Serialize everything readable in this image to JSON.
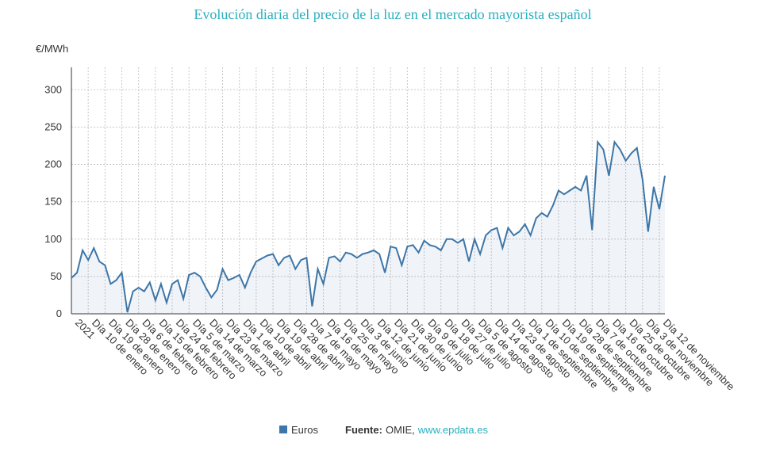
{
  "chart_data": {
    "type": "line",
    "title": "Evolución diaria del precio de la luz en el mercado mayorista español",
    "y_label": "€/MWh",
    "source_label": "Fuente:",
    "source": "OMIE,",
    "source_url": "www.epdata.es",
    "categories": [
      "2021",
      null,
      null,
      "Día 10 de enero",
      null,
      null,
      "Día 19 de enero",
      null,
      null,
      "Día 28 de enero",
      null,
      null,
      "Día 6 de febrero",
      null,
      null,
      "Día 15 de febrero",
      null,
      null,
      "Día 24 de febrero",
      null,
      null,
      "Día 5 de marzo",
      null,
      null,
      "Día 14 de marzo",
      null,
      null,
      "Día 23 de marzo",
      null,
      null,
      "Día 1 de abril",
      null,
      null,
      "Día 10 de abril",
      null,
      null,
      "Día 19 de abril",
      null,
      null,
      "Día 28 de abril",
      null,
      null,
      "Día 7 de mayo",
      null,
      null,
      "Día 16 de mayo",
      null,
      null,
      "Día 25 de mayo",
      null,
      null,
      "Día 3 de junio",
      null,
      null,
      "Día 12 de junio",
      null,
      null,
      "Día 21 de junio",
      null,
      null,
      "Día 30 de junio",
      null,
      null,
      "Día 9 de julio",
      null,
      null,
      "Día 18 de julio",
      null,
      null,
      "Día 27 de julio",
      null,
      null,
      "Día 5 de agosto",
      null,
      null,
      "Día 14 de agosto",
      null,
      null,
      "Día 23 de agosto",
      null,
      null,
      "Día 1 de septiembre",
      null,
      null,
      "Día 10 de septiembre",
      null,
      null,
      "Día 19 de septiembre",
      null,
      null,
      "Día 28 de septiembre",
      null,
      null,
      "Día 7 de octubre",
      null,
      null,
      "Día 16 de octubre",
      null,
      null,
      "Día 25 de octubre",
      null,
      null,
      "Día 3 de noviembre",
      null,
      null,
      "Día 12 de noviembre",
      null
    ],
    "series": [
      {
        "name": "Euros",
        "color": "#3d76a8",
        "values": [
          48,
          55,
          85,
          72,
          88,
          70,
          65,
          40,
          45,
          55,
          2,
          30,
          35,
          30,
          42,
          18,
          40,
          15,
          40,
          45,
          20,
          52,
          55,
          50,
          35,
          22,
          32,
          60,
          45,
          48,
          52,
          35,
          55,
          70,
          74,
          78,
          80,
          65,
          75,
          78,
          60,
          72,
          75,
          10,
          60,
          40,
          75,
          77,
          70,
          82,
          80,
          75,
          80,
          82,
          85,
          80,
          55,
          90,
          88,
          65,
          90,
          92,
          82,
          98,
          92,
          90,
          85,
          100,
          100,
          95,
          100,
          70,
          100,
          80,
          105,
          112,
          115,
          88,
          115,
          105,
          110,
          120,
          105,
          128,
          135,
          130,
          145,
          165,
          160,
          165,
          170,
          165,
          185,
          112,
          230,
          220,
          185,
          230,
          220,
          205,
          215,
          222,
          180,
          110,
          170,
          140,
          185
        ]
      }
    ],
    "ylim": [
      0,
      330
    ],
    "yticks": [
      0,
      50,
      100,
      150,
      200,
      250,
      300
    ],
    "grid": true,
    "legend": "bottom"
  }
}
